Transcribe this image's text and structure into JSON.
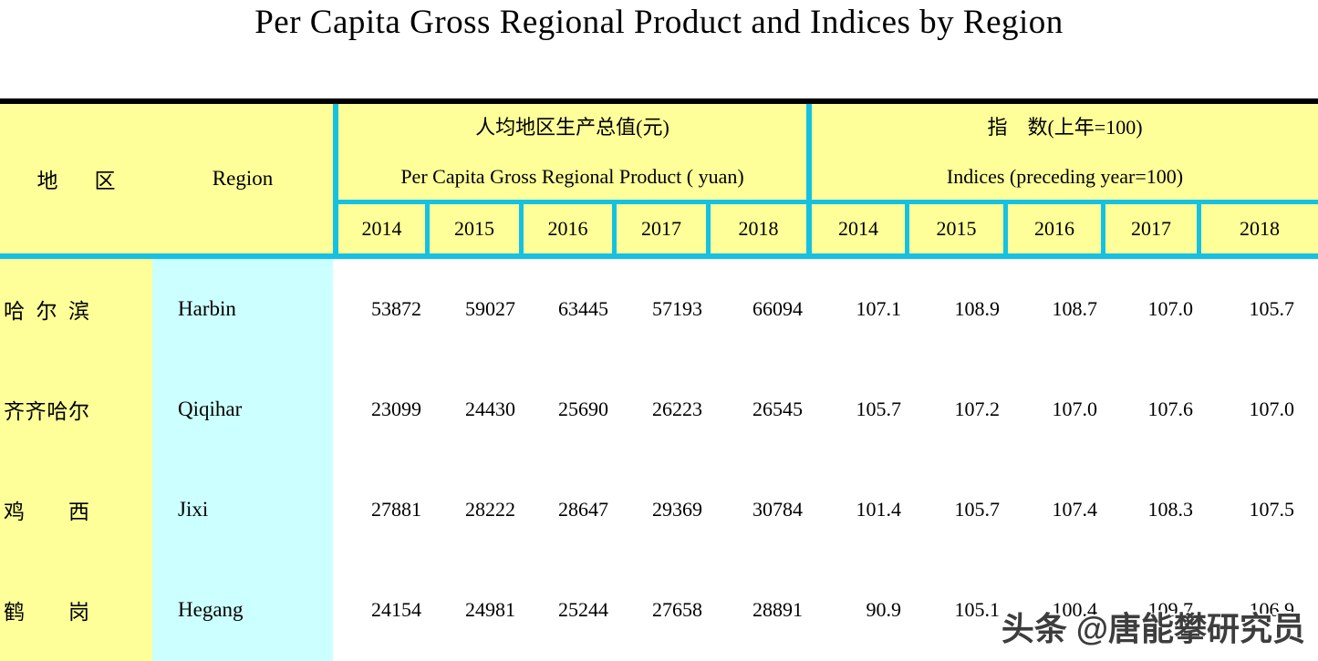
{
  "title": "Per Capita Gross Regional Product and Indices by Region",
  "colors": {
    "header_yellow": "#FFFF99",
    "region_column_cyan": "#CCFFFF",
    "border_cyan": "#15C1E3",
    "rule_black": "#000000"
  },
  "header": {
    "region_label_zh": "地区",
    "region_label_en": "Region",
    "groups": [
      {
        "zh": "人均地区生产总值(元)",
        "en": "Per Capita Gross Regional Product ( yuan)",
        "years": [
          "2014",
          "2015",
          "2016",
          "2017",
          "2018"
        ]
      },
      {
        "zh": "指　数(上年=100)",
        "en": "Indices (preceding year=100)",
        "years": [
          "2014",
          "2015",
          "2016",
          "2017",
          "2018"
        ]
      }
    ]
  },
  "rows": [
    {
      "zh": "哈尔滨",
      "en": "Harbin",
      "grp": [
        "53872",
        "59027",
        "63445",
        "57193",
        "66094"
      ],
      "idx": [
        "107.1",
        "108.9",
        "108.7",
        "107.0",
        "105.7"
      ]
    },
    {
      "zh": "齐齐哈尔",
      "en": "Qiqihar",
      "grp": [
        "23099",
        "24430",
        "25690",
        "26223",
        "26545"
      ],
      "idx": [
        "105.7",
        "107.2",
        "107.0",
        "107.6",
        "107.0"
      ]
    },
    {
      "zh": "鸡西",
      "en": "Jixi",
      "grp": [
        "27881",
        "28222",
        "28647",
        "29369",
        "30784"
      ],
      "idx": [
        "101.4",
        "105.7",
        "107.4",
        "108.3",
        "107.5"
      ]
    },
    {
      "zh": "鹤岗",
      "en": "Hegang",
      "grp": [
        "24154",
        "24981",
        "25244",
        "27658",
        "28891"
      ],
      "idx": [
        "90.9",
        "105.1",
        "100.4",
        "109.7",
        "106.9"
      ]
    }
  ],
  "watermark": "头条 @唐能攀研究员"
}
